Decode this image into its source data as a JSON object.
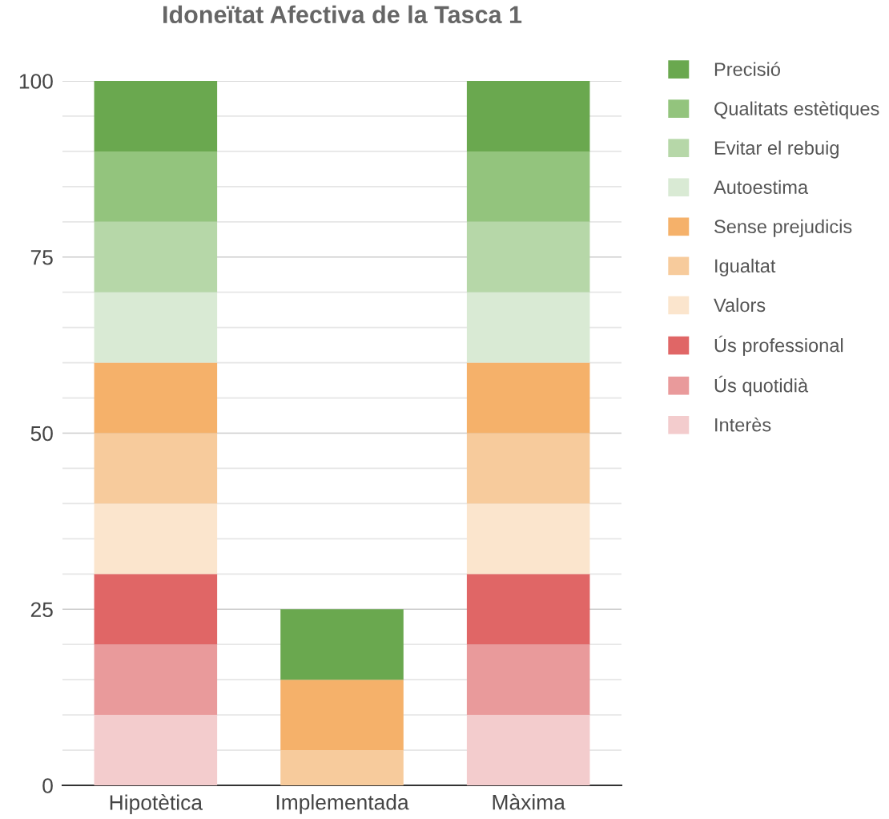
{
  "chart_data": {
    "type": "bar",
    "stacked": true,
    "title": "Idoneïtat Afectiva de la Tasca 1",
    "categories": [
      "Hipotètica",
      "Implementada",
      "Màxima"
    ],
    "series": [
      {
        "name": "Interès",
        "color": "#f3cccd",
        "values": [
          10,
          null,
          10
        ]
      },
      {
        "name": "Ús quotidià",
        "color": "#e99a9b",
        "values": [
          10,
          null,
          10
        ]
      },
      {
        "name": "Ús professional",
        "color": "#e06666",
        "values": [
          10,
          null,
          10
        ]
      },
      {
        "name": "Valors",
        "color": "#fbe5cd",
        "values": [
          10,
          null,
          10
        ]
      },
      {
        "name": "Igualtat",
        "color": "#f7cb9c",
        "values": [
          10,
          5,
          10
        ]
      },
      {
        "name": "Sense prejudicis",
        "color": "#f5b16a",
        "values": [
          10,
          10,
          10
        ]
      },
      {
        "name": "Autoestima",
        "color": "#d9ead4",
        "values": [
          10,
          null,
          10
        ]
      },
      {
        "name": "Evitar el rebuig",
        "color": "#b6d7a8",
        "values": [
          10,
          null,
          10
        ]
      },
      {
        "name": "Qualitats estètiques",
        "color": "#93c47d",
        "values": [
          10,
          null,
          10
        ]
      },
      {
        "name": "Precisió",
        "color": "#6aa84f",
        "values": [
          10,
          10,
          10
        ]
      }
    ],
    "ylim": [
      0,
      100
    ],
    "yticks": [
      0,
      {
        "value": 5,
        "label": null
      },
      {
        "value": 10,
        "label": null
      },
      {
        "value": 15,
        "label": null
      },
      {
        "value": 20,
        "label": null
      },
      25,
      {
        "value": 30,
        "label": null
      },
      {
        "value": 35,
        "label": null
      },
      {
        "value": 40,
        "label": null
      },
      {
        "value": 45,
        "label": null
      },
      50,
      {
        "value": 55,
        "label": null
      },
      {
        "value": 60,
        "label": null
      },
      {
        "value": 65,
        "label": null
      },
      {
        "value": 70,
        "label": null
      },
      75,
      {
        "value": 80,
        "label": null
      },
      {
        "value": 85,
        "label": null
      },
      {
        "value": 90,
        "label": null
      },
      {
        "value": 95,
        "label": null
      },
      100
    ],
    "grid": "y",
    "legend": "right"
  }
}
